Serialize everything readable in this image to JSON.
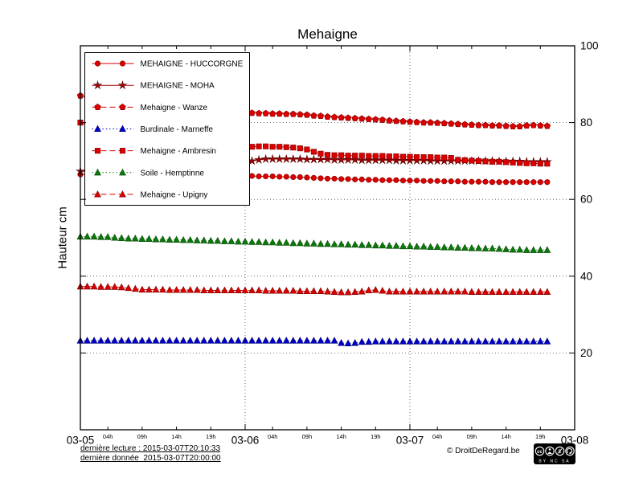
{
  "title": "Mehaigne",
  "y_axis_label": "Hauteur cm",
  "footer": {
    "last_read": "dernière lecture : 2015-03-07T20:10:33",
    "last_data": "dernière donnée  2015-03-07T20:00:00",
    "copyright": "© DroitDeRegard.be",
    "license_text": "BY NC SA"
  },
  "chart_data": {
    "type": "line",
    "title": "Mehaigne",
    "ylabel": "Hauteur cm",
    "xlim": [
      0,
      72
    ],
    "ylim": [
      0,
      100
    ],
    "x_unit": "hours since 2015-03-05 00:00",
    "x_hours_start": 0,
    "x_hours_step": 1,
    "grid": "dotted",
    "legend_position": "top-left",
    "y_ticks": [
      20,
      40,
      60,
      80,
      100
    ],
    "x_major_ticks": [
      {
        "t": 0,
        "label": "03-05"
      },
      {
        "t": 24,
        "label": "03-06"
      },
      {
        "t": 48,
        "label": "03-07"
      },
      {
        "t": 72,
        "label": "03-08"
      }
    ],
    "x_minor_ticks": [
      {
        "t": 4,
        "label": "04h"
      },
      {
        "t": 9,
        "label": "09h"
      },
      {
        "t": 14,
        "label": "14h"
      },
      {
        "t": 19,
        "label": "19h"
      },
      {
        "t": 28,
        "label": "04h"
      },
      {
        "t": 33,
        "label": "09h"
      },
      {
        "t": 38,
        "label": "14h"
      },
      {
        "t": 43,
        "label": "19h"
      },
      {
        "t": 52,
        "label": "04h"
      },
      {
        "t": 57,
        "label": "09h"
      },
      {
        "t": 62,
        "label": "14h"
      },
      {
        "t": 67,
        "label": "19h"
      }
    ],
    "series": [
      {
        "id": "huccorgne",
        "name": "MEHAIGNE - HUCCORGNE",
        "color": "#dd0000",
        "edge": "#880000",
        "marker": "circle",
        "line_style": "solid",
        "values": [
          66.5,
          66.5,
          66.4,
          66.4,
          66.3,
          66.2,
          66.2,
          66.1,
          66.1,
          66.0,
          66.0,
          65.9,
          65.9,
          65.8,
          65.8,
          65.8,
          65.7,
          65.7,
          65.7,
          65.8,
          65.9,
          66.0,
          66.0,
          66.1,
          66.1,
          66.1,
          66.0,
          66.0,
          66.0,
          65.9,
          65.9,
          65.8,
          65.8,
          65.7,
          65.6,
          65.5,
          65.4,
          65.4,
          65.3,
          65.3,
          65.2,
          65.2,
          65.1,
          65.1,
          65.0,
          65.0,
          65.0,
          64.9,
          64.9,
          64.9,
          64.8,
          64.8,
          64.8,
          64.7,
          64.7,
          64.7,
          64.6,
          64.6,
          64.6,
          64.6,
          64.5,
          64.5,
          64.5,
          64.5,
          64.5,
          64.5,
          64.5,
          64.5,
          64.5
        ]
      },
      {
        "id": "moha",
        "name": "MEHAIGNE - MOHA",
        "color": "#aa0000",
        "edge": "#550000",
        "marker": "star",
        "line_style": "solid",
        "values": [
          67.3,
          67.3,
          67.2,
          67.1,
          67.0,
          67.0,
          67.1,
          67.1,
          67.2,
          67.2,
          67.3,
          67.3,
          67.4,
          67.5,
          67.5,
          67.6,
          67.7,
          67.7,
          67.8,
          67.9,
          68.0,
          68.3,
          68.7,
          69.2,
          69.6,
          70.0,
          70.3,
          70.5,
          70.5,
          70.5,
          70.5,
          70.5,
          70.5,
          70.4,
          70.4,
          70.4,
          70.4,
          70.3,
          70.3,
          70.3,
          70.3,
          70.2,
          70.2,
          70.2,
          70.2,
          70.2,
          70.1,
          70.1,
          70.1,
          70.1,
          70.1,
          70.0,
          70.0,
          70.0,
          70.0,
          70.0,
          70.0,
          70.0,
          70.0,
          70.0,
          70.0,
          69.9,
          69.9,
          69.9,
          69.9,
          69.8,
          69.8,
          69.8,
          69.8
        ]
      },
      {
        "id": "wanze",
        "name": "Mehaigne - Wanze",
        "color": "#dd0000",
        "edge": "#880000",
        "marker": "pentagon",
        "line_style": "dashed",
        "values": [
          87.0,
          86.5,
          86.0,
          85.5,
          85.2,
          84.9,
          84.6,
          84.3,
          84.0,
          83.8,
          83.6,
          83.4,
          83.3,
          83.2,
          83.1,
          83.0,
          82.9,
          82.8,
          82.8,
          82.7,
          82.7,
          82.6,
          82.6,
          82.5,
          82.5,
          82.5,
          82.4,
          82.4,
          82.3,
          82.3,
          82.2,
          82.2,
          82.1,
          82.0,
          81.8,
          81.7,
          81.5,
          81.4,
          81.3,
          81.2,
          81.1,
          81.0,
          80.9,
          80.8,
          80.7,
          80.5,
          80.4,
          80.3,
          80.2,
          80.1,
          80.0,
          80.0,
          79.9,
          79.8,
          79.7,
          79.6,
          79.5,
          79.4,
          79.3,
          79.3,
          79.2,
          79.2,
          79.1,
          79.0,
          79.0,
          79.2,
          79.3,
          79.2,
          79.1
        ]
      },
      {
        "id": "marneffe",
        "name": "Burdinale - Marneffe",
        "color": "#0000cc",
        "edge": "#000077",
        "marker": "triangle",
        "line_style": "dotted",
        "values": [
          23.2,
          23.2,
          23.2,
          23.2,
          23.2,
          23.2,
          23.2,
          23.2,
          23.2,
          23.2,
          23.2,
          23.2,
          23.2,
          23.2,
          23.2,
          23.2,
          23.2,
          23.2,
          23.2,
          23.2,
          23.2,
          23.2,
          23.2,
          23.2,
          23.2,
          23.2,
          23.2,
          23.2,
          23.2,
          23.2,
          23.2,
          23.2,
          23.2,
          23.2,
          23.2,
          23.2,
          23.2,
          23.2,
          22.6,
          22.5,
          22.6,
          22.9,
          22.9,
          23.0,
          23.0,
          23.0,
          23.0,
          23.0,
          23.0,
          23.0,
          23.0,
          23.0,
          23.0,
          23.0,
          23.0,
          23.0,
          23.0,
          23.0,
          23.0,
          23.0,
          23.0,
          23.0,
          23.0,
          23.0,
          23.0,
          23.0,
          23.0,
          23.0,
          23.0
        ]
      },
      {
        "id": "ambresin",
        "name": "Mehaigne - Ambresin",
        "color": "#dd0000",
        "edge": "#880000",
        "marker": "square",
        "line_style": "dashed",
        "values": [
          80.0,
          79.5,
          79.0,
          78.4,
          77.8,
          77.2,
          76.6,
          76.1,
          75.6,
          75.2,
          74.8,
          74.5,
          74.3,
          74.1,
          74.0,
          73.9,
          73.8,
          73.7,
          73.7,
          73.6,
          73.6,
          73.6,
          73.6,
          73.6,
          73.7,
          73.7,
          73.8,
          73.8,
          73.7,
          73.7,
          73.6,
          73.5,
          73.3,
          73.0,
          72.4,
          71.9,
          71.6,
          71.5,
          71.5,
          71.4,
          71.4,
          71.4,
          71.3,
          71.3,
          71.3,
          71.2,
          71.2,
          71.1,
          71.1,
          71.0,
          71.0,
          71.0,
          70.9,
          70.9,
          70.8,
          70.3,
          70.2,
          70.1,
          70.0,
          69.9,
          69.8,
          69.8,
          69.7,
          69.6,
          69.5,
          69.4,
          69.4,
          69.3,
          69.3
        ]
      },
      {
        "id": "hemptinne",
        "name": "Soile - Hemptinne",
        "color": "#0b7a0b",
        "edge": "#064d06",
        "marker": "triangle",
        "line_style": "dotted",
        "values": [
          50.3,
          50.3,
          50.3,
          50.2,
          50.2,
          50.0,
          49.9,
          49.8,
          49.8,
          49.7,
          49.7,
          49.6,
          49.6,
          49.5,
          49.5,
          49.4,
          49.4,
          49.3,
          49.3,
          49.2,
          49.2,
          49.1,
          49.1,
          49.0,
          49.0,
          48.9,
          48.9,
          48.8,
          48.8,
          48.7,
          48.7,
          48.6,
          48.6,
          48.5,
          48.5,
          48.4,
          48.4,
          48.3,
          48.3,
          48.2,
          48.2,
          48.1,
          48.1,
          48.0,
          48.0,
          47.9,
          47.9,
          47.8,
          47.8,
          47.7,
          47.7,
          47.6,
          47.6,
          47.5,
          47.5,
          47.4,
          47.4,
          47.3,
          47.3,
          47.2,
          47.2,
          47.1,
          47.0,
          46.9,
          46.9,
          46.8,
          46.8,
          46.8,
          46.8
        ]
      },
      {
        "id": "upigny",
        "name": "Mehaigne - Upigny",
        "color": "#dd0000",
        "edge": "#880000",
        "marker": "triangle",
        "line_style": "dashed",
        "values": [
          37.3,
          37.3,
          37.3,
          37.2,
          37.2,
          37.2,
          37.1,
          36.9,
          36.7,
          36.5,
          36.5,
          36.5,
          36.5,
          36.4,
          36.4,
          36.4,
          36.4,
          36.4,
          36.3,
          36.3,
          36.3,
          36.3,
          36.3,
          36.3,
          36.3,
          36.3,
          36.3,
          36.2,
          36.2,
          36.2,
          36.2,
          36.2,
          36.1,
          36.1,
          36.1,
          36.1,
          36.0,
          35.9,
          35.8,
          35.8,
          35.9,
          36.0,
          36.3,
          36.4,
          36.2,
          36.0,
          36.0,
          36.0,
          36.0,
          36.0,
          36.0,
          36.0,
          36.0,
          36.0,
          36.0,
          36.0,
          36.0,
          35.9,
          35.9,
          35.9,
          35.9,
          35.9,
          35.9,
          35.9,
          35.9,
          35.9,
          35.9,
          35.9,
          35.9
        ]
      }
    ]
  }
}
